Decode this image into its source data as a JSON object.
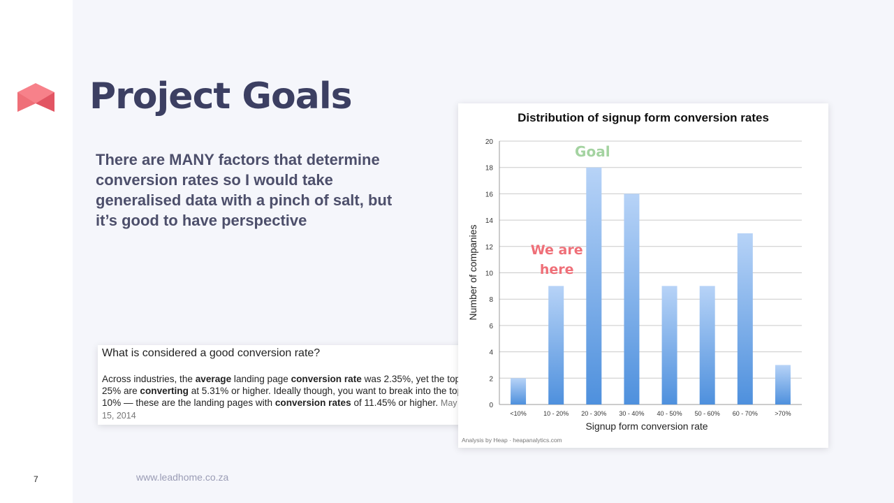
{
  "slide": {
    "page_number": "7",
    "title": "Project Goals",
    "body_lines": [
      "There are MANY factors that determine",
      "conversion rates so I would take",
      "generalised data with a pinch of salt, but",
      "it’s good to have perspective"
    ],
    "footer_url": "www.leadhome.co.za",
    "logo_icon": "leadhome-house-logo-icon"
  },
  "snippet": {
    "question": "What is considered a good conversion rate?",
    "caret_icon": "chevron-up-icon",
    "parts": [
      {
        "t": "Across industries, the ",
        "b": false
      },
      {
        "t": "average",
        "b": true
      },
      {
        "t": " landing page ",
        "b": false
      },
      {
        "t": "conversion rate",
        "b": true
      },
      {
        "t": " was 2.35%, yet the top 25% are ",
        "b": false
      },
      {
        "t": "converting",
        "b": true
      },
      {
        "t": " at 5.31% or higher. Ideally though, you want to break into the top 10% — these are the landing pages with ",
        "b": false
      },
      {
        "t": "conversion rates",
        "b": true
      },
      {
        "t": " of 11.45% or higher.",
        "b": false
      }
    ],
    "date": "May 15, 2014"
  },
  "chart_data": {
    "type": "bar",
    "title": "Distribution of signup form conversion rates",
    "xlabel": "Signup form conversion rate",
    "ylabel": "Number of companies",
    "categories": [
      "<10%",
      "10 - 20%",
      "20 - 30%",
      "30 - 40%",
      "40 - 50%",
      "50 - 60%",
      "60 - 70%",
      ">70%"
    ],
    "values": [
      2,
      9,
      18,
      16,
      9,
      9,
      13,
      3
    ],
    "ylim": [
      0,
      20
    ],
    "yticks": [
      "0",
      "2",
      "4",
      "6",
      "8",
      "10",
      "12",
      "14",
      "16",
      "18",
      "20"
    ],
    "grid": true,
    "annotations": [
      {
        "text": "Goal",
        "category": "20 - 30%",
        "color": "#a4d3a1"
      },
      {
        "text": "We are here",
        "category": "10 - 20%",
        "color": "#ef6f78"
      }
    ],
    "source_note": "Analysis by Heap · heapanalytics.com",
    "colors": {
      "bar_top": "#b7d3f7",
      "bar_bottom": "#4e90dd",
      "grid": "#c9c9c9"
    }
  }
}
